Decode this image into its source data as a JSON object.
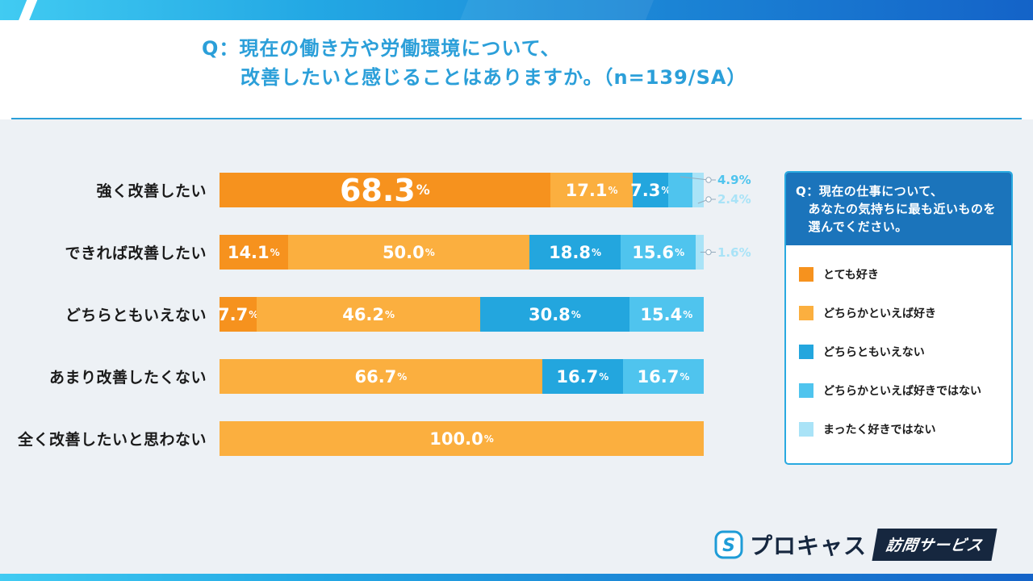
{
  "page": {
    "bg": "#EDF1F5",
    "accent_blue": "#2B9FD9"
  },
  "header": {
    "title_line1": "Q：現在の働き方や労働環境について、",
    "title_line2": "改善したいと感じることはありますか。（n=139/SA）"
  },
  "chart_data": {
    "type": "bar",
    "orientation": "horizontal",
    "stacked": true,
    "value_unit": "%",
    "xlim": [
      0,
      100
    ],
    "grid": false,
    "legend_position": "right-panel",
    "categories": [
      "強く改善したい",
      "できれば改善したい",
      "どちらともいえない",
      "あまり改善したくない",
      "全く改善したいと思わない"
    ],
    "series": [
      {
        "name": "とても好き",
        "color": "#F6921E",
        "values": [
          68.3,
          14.1,
          7.7,
          0,
          0
        ]
      },
      {
        "name": "どちらかといえば好き",
        "color": "#FBAF3F",
        "values": [
          17.1,
          50.0,
          46.2,
          66.7,
          100.0
        ]
      },
      {
        "name": "どちらともいえない",
        "color": "#23A6DE",
        "values": [
          7.3,
          18.8,
          30.8,
          16.7,
          0
        ]
      },
      {
        "name": "どちらかといえば好きではない",
        "color": "#4FC4EE",
        "values": [
          4.9,
          15.6,
          15.4,
          16.7,
          0
        ]
      },
      {
        "name": "まったく好きではない",
        "color": "#A9E3F7",
        "values": [
          2.4,
          1.6,
          0,
          0,
          0
        ]
      }
    ],
    "inline_label_min": 6,
    "emphasized": [
      {
        "category_index": 0,
        "series_index": 0
      }
    ],
    "callouts": [
      {
        "category_index": 0,
        "series_index": 3,
        "text": "4.9%"
      },
      {
        "category_index": 0,
        "series_index": 4,
        "text": "2.4%"
      },
      {
        "category_index": 1,
        "series_index": 4,
        "text": "1.6%"
      }
    ]
  },
  "legend": {
    "title": "Q：現在の仕事について、\n　あなたの気持ちに最も近いものを\n　選んでください。",
    "items": [
      {
        "label": "とても好き",
        "color": "#F6921E"
      },
      {
        "label": "どちらかといえば好き",
        "color": "#FBAF3F"
      },
      {
        "label": "どちらともいえない",
        "color": "#23A6DE"
      },
      {
        "label": "どちらかといえば好きではない",
        "color": "#4FC4EE"
      },
      {
        "label": "まったく好きではない",
        "color": "#A9E3F7"
      }
    ]
  },
  "footer": {
    "logo_letter": "S",
    "brand": "プロキャス",
    "service_badge": "訪問サービス"
  }
}
